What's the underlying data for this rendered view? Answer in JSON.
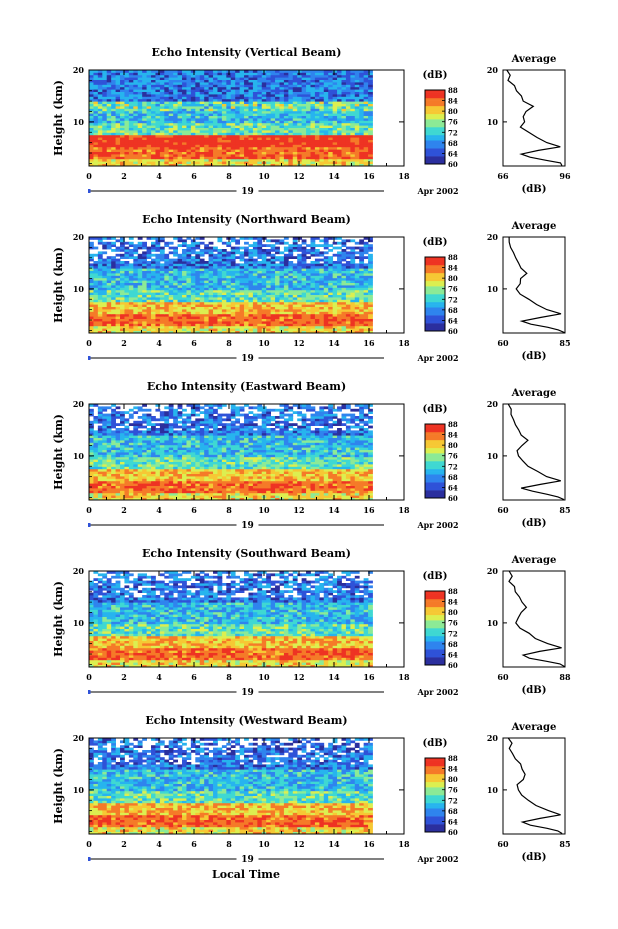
{
  "chart_data": [
    {
      "type": "heatmap",
      "title": "Echo Intensity (Vertical Beam)",
      "ylabel": "Height (km)",
      "ylim": [
        1.5,
        20
      ],
      "xlim": [
        0,
        18
      ],
      "x_ticks": [
        0,
        2,
        4,
        6,
        8,
        10,
        12,
        14,
        16,
        18
      ],
      "y_ticks": [
        10,
        20
      ],
      "date_day": "19",
      "date_label": "Apr 2002",
      "colorbar": {
        "unit": "(dB)",
        "ticks": [
          60,
          64,
          68,
          72,
          76,
          80,
          84,
          88
        ],
        "range": [
          60,
          88
        ]
      },
      "avg": {
        "title": "Average",
        "xlabel": "(dB)",
        "xlim": [
          66,
          96
        ],
        "x_ticks": [
          66,
          96
        ],
        "y_ticks": [
          10,
          20
        ]
      }
    },
    {
      "type": "heatmap",
      "title": "Echo Intensity (Northward Beam)",
      "ylabel": "Height (km)",
      "ylim": [
        1.5,
        20
      ],
      "xlim": [
        0,
        18
      ],
      "x_ticks": [
        0,
        2,
        4,
        6,
        8,
        10,
        12,
        14,
        16,
        18
      ],
      "y_ticks": [
        10,
        20
      ],
      "date_day": "19",
      "date_label": "Apr 2002",
      "colorbar": {
        "unit": "(dB)",
        "ticks": [
          60,
          64,
          68,
          72,
          76,
          80,
          84,
          88
        ],
        "range": [
          60,
          88
        ]
      },
      "avg": {
        "title": "Average",
        "xlabel": "(dB)",
        "xlim": [
          60,
          85
        ],
        "x_ticks": [
          60,
          85
        ],
        "y_ticks": [
          10,
          20
        ]
      }
    },
    {
      "type": "heatmap",
      "title": "Echo Intensity (Eastward Beam)",
      "ylabel": "Height (km)",
      "ylim": [
        1.5,
        20
      ],
      "xlim": [
        0,
        18
      ],
      "x_ticks": [
        0,
        2,
        4,
        6,
        8,
        10,
        12,
        14,
        16,
        18
      ],
      "y_ticks": [
        10,
        20
      ],
      "date_day": "19",
      "date_label": "Apr 2002",
      "colorbar": {
        "unit": "(dB)",
        "ticks": [
          60,
          64,
          68,
          72,
          76,
          80,
          84,
          88
        ],
        "range": [
          60,
          88
        ]
      },
      "avg": {
        "title": "Average",
        "xlabel": "(dB)",
        "xlim": [
          60,
          85
        ],
        "x_ticks": [
          60,
          85
        ],
        "y_ticks": [
          10,
          20
        ]
      }
    },
    {
      "type": "heatmap",
      "title": "Echo Intensity (Southward Beam)",
      "ylabel": "Height (km)",
      "ylim": [
        1.5,
        20
      ],
      "xlim": [
        0,
        18
      ],
      "x_ticks": [
        0,
        2,
        4,
        6,
        8,
        10,
        12,
        14,
        16,
        18
      ],
      "y_ticks": [
        10,
        20
      ],
      "date_day": "19",
      "date_label": "Apr 2002",
      "colorbar": {
        "unit": "(dB)",
        "ticks": [
          60,
          64,
          68,
          72,
          76,
          80,
          84,
          88
        ],
        "range": [
          60,
          88
        ]
      },
      "avg": {
        "title": "Average",
        "xlabel": "(dB)",
        "xlim": [
          60,
          88
        ],
        "x_ticks": [
          60,
          88
        ],
        "y_ticks": [
          10,
          20
        ]
      }
    },
    {
      "type": "heatmap",
      "title": "Echo Intensity (Westward Beam)",
      "ylabel": "Height (km)",
      "ylim": [
        1.5,
        20
      ],
      "xlim": [
        0,
        18
      ],
      "x_ticks": [
        0,
        2,
        4,
        6,
        8,
        10,
        12,
        14,
        16,
        18
      ],
      "y_ticks": [
        10,
        20
      ],
      "date_day": "19",
      "date_label": "Apr 2002",
      "colorbar": {
        "unit": "(dB)",
        "ticks": [
          60,
          64,
          68,
          72,
          76,
          80,
          84,
          88
        ],
        "range": [
          60,
          88
        ]
      },
      "avg": {
        "title": "Average",
        "xlabel": "(dB)",
        "xlim": [
          60,
          85
        ],
        "x_ticks": [
          60,
          85
        ],
        "y_ticks": [
          10,
          20
        ]
      }
    }
  ],
  "xlabel": "Local Time",
  "colorscale": [
    "#2b2f9e",
    "#2f52d8",
    "#2f84ee",
    "#27b4ee",
    "#3fd8d2",
    "#8cea96",
    "#dcef50",
    "#f6c834",
    "#f57a28",
    "#ee3323"
  ]
}
